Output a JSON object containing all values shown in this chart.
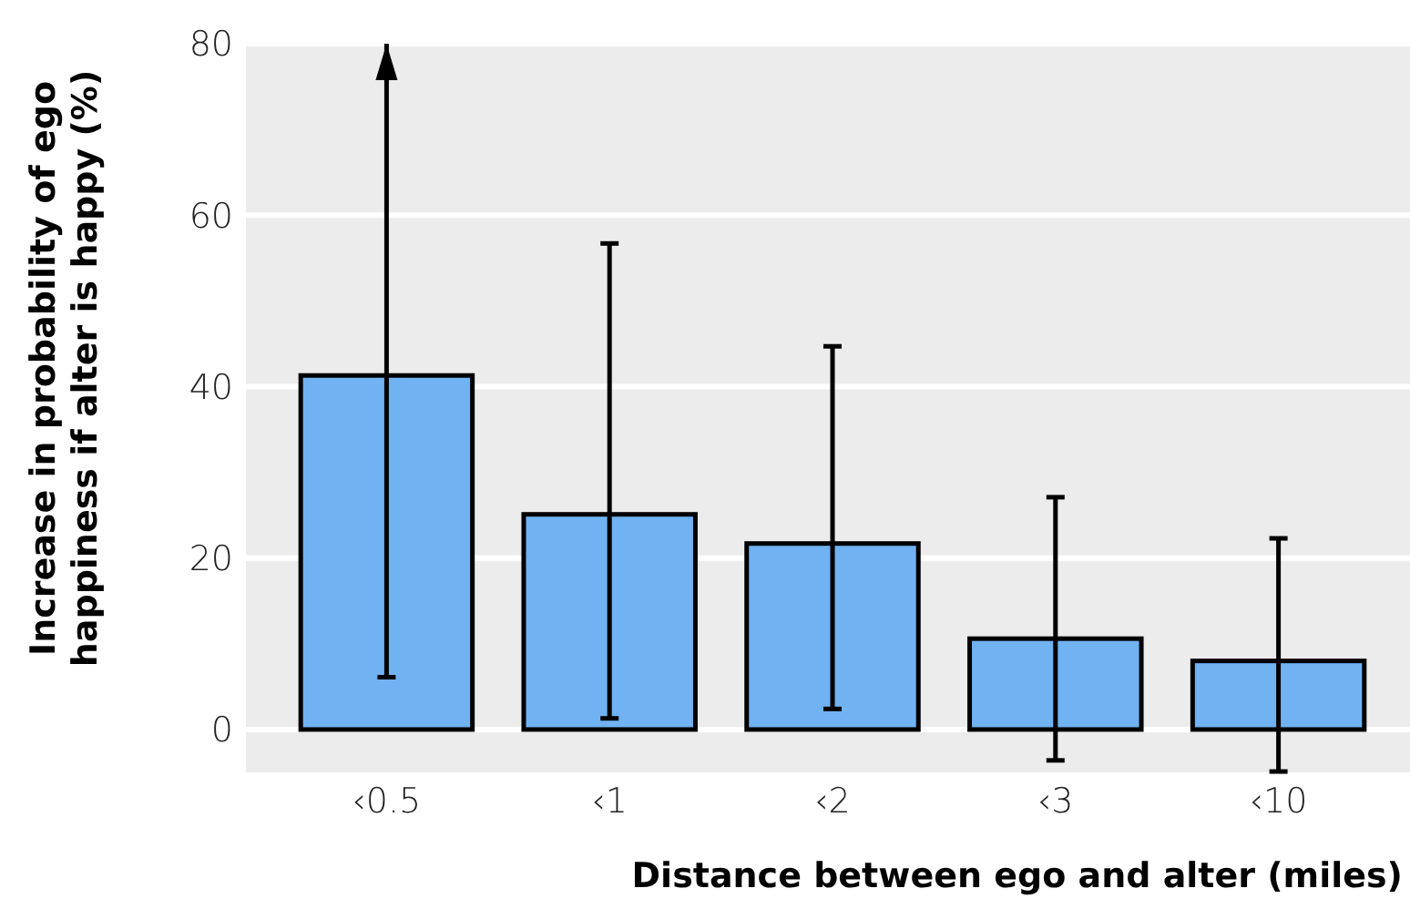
{
  "chart_data": {
    "type": "bar",
    "xlabel": "Distance between ego and alter (miles)",
    "ylabel": "Increase in probability of ego\nhappiness if alter is happy (%)",
    "categories": [
      "‹0.5",
      "‹1",
      "‹2",
      "‹3",
      "‹10"
    ],
    "values": [
      41.3,
      25.1,
      21.7,
      10.6,
      8.0
    ],
    "errors": [
      [
        6.1,
        80
      ],
      [
        1.3,
        56.7
      ],
      [
        2.4,
        44.7
      ],
      [
        -3.6,
        27.1
      ],
      [
        -4.9,
        22.3
      ]
    ],
    "color": "#70b2f2",
    "ylim": [
      -5,
      80
    ],
    "yticks": [
      0,
      20,
      40,
      60,
      80
    ],
    "grid": "y"
  }
}
